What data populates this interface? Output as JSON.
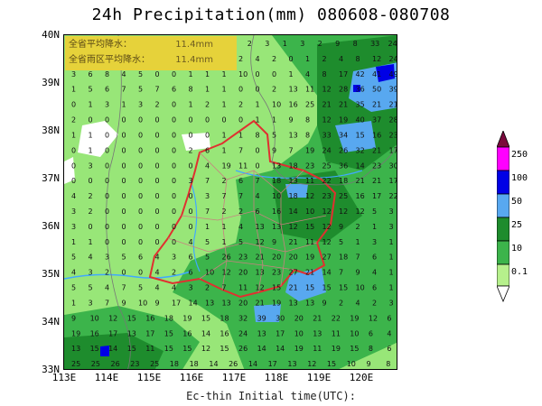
{
  "title": "24h Precipitation(mm) 080608-080708",
  "footer": "Ec-thin  Initial time(UTC):",
  "info_box": {
    "rows": [
      {
        "label": "全省平均降水：",
        "value": "11.4mm"
      },
      {
        "label": "全省雨区平均降水：",
        "value": "11.4mm"
      }
    ]
  },
  "chart_data": {
    "type": "heatmap",
    "title": "24h Precipitation(mm) 080608-080708",
    "x_ticks": [
      "113E",
      "114E",
      "115E",
      "116E",
      "117E",
      "118E",
      "119E",
      "120E"
    ],
    "y_ticks": [
      "40N",
      "39N",
      "38N",
      "37N",
      "36N",
      "35N",
      "34N",
      "33N"
    ],
    "xlim": [
      113,
      120.8
    ],
    "ylim": [
      33,
      40
    ],
    "legend": {
      "levels": [
        "0.1",
        "10",
        "25",
        "50",
        "100",
        "250"
      ],
      "colors": [
        "#ffffff",
        "#b6f08c",
        "#3cb44b",
        "#1e8c2d",
        "#58a8f0",
        "#0000e6",
        "#ff00ff",
        "#7a0a3c"
      ]
    }
  },
  "colors": {
    "light_green": "#98e678",
    "mid_green": "#3cb44b",
    "dark_green": "#1e8c2d",
    "blue": "#58a8f0",
    "deep_blue": "#0000e6",
    "border_red": "#e03030",
    "river": "#40a8ff"
  }
}
